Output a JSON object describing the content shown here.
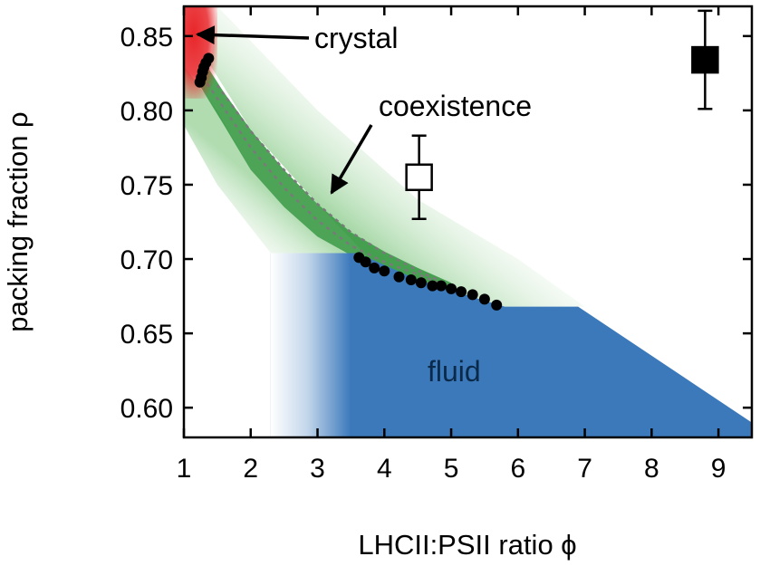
{
  "chart_data": {
    "type": "scatter",
    "xlabel": "LHCII:PSII ratio ϕ",
    "ylabel": "packing fraction ρ",
    "xlim": [
      1,
      9.5
    ],
    "ylim": [
      0.58,
      0.87
    ],
    "x_ticks": [
      1,
      2,
      3,
      4,
      5,
      6,
      7,
      8,
      9
    ],
    "y_ticks": [
      0.6,
      0.65,
      0.7,
      0.75,
      0.8,
      0.85
    ],
    "x_tick_labels": [
      "1",
      "2",
      "3",
      "4",
      "5",
      "6",
      "7",
      "8",
      "9"
    ],
    "y_tick_labels": [
      "0.60",
      "0.65",
      "0.70",
      "0.75",
      "0.80",
      "0.85"
    ],
    "colors": {
      "fluid": "#3b79bb",
      "coexistence": "#3a9a45",
      "coexistence_light": "#bfe2bf",
      "crystal": "#e8262a",
      "dots": "#000000"
    },
    "regions": [
      {
        "name": "crystal",
        "label": "crystal"
      },
      {
        "name": "coexistence",
        "label": "coexistence"
      },
      {
        "name": "fluid",
        "label": "fluid"
      }
    ],
    "series": [
      {
        "name": "crystal boundary",
        "points": [
          [
            1.24,
            0.819
          ],
          [
            1.26,
            0.822
          ],
          [
            1.28,
            0.826
          ],
          [
            1.3,
            0.829
          ],
          [
            1.33,
            0.832
          ],
          [
            1.37,
            0.835
          ]
        ]
      },
      {
        "name": "fluid boundary",
        "points": [
          [
            3.62,
            0.701
          ],
          [
            3.72,
            0.698
          ],
          [
            3.85,
            0.694
          ],
          [
            4.0,
            0.692
          ],
          [
            4.22,
            0.688
          ],
          [
            4.4,
            0.686
          ],
          [
            4.55,
            0.684
          ],
          [
            4.72,
            0.682
          ],
          [
            4.85,
            0.682
          ],
          [
            5.0,
            0.68
          ],
          [
            5.15,
            0.678
          ],
          [
            5.32,
            0.676
          ],
          [
            5.5,
            0.673
          ],
          [
            5.68,
            0.669
          ]
        ]
      }
    ],
    "error_points": [
      {
        "name": "open-square",
        "x": 4.52,
        "y": 0.755,
        "y_low": 0.727,
        "y_high": 0.783,
        "filled": false
      },
      {
        "name": "filled-square",
        "x": 8.8,
        "y": 0.834,
        "y_low": 0.801,
        "y_high": 0.867,
        "filled": true
      }
    ],
    "annotations": [
      {
        "name": "crystal",
        "text": "crystal"
      },
      {
        "name": "coexistence",
        "text": "coexistence"
      },
      {
        "name": "fluid",
        "text": "fluid"
      }
    ]
  }
}
